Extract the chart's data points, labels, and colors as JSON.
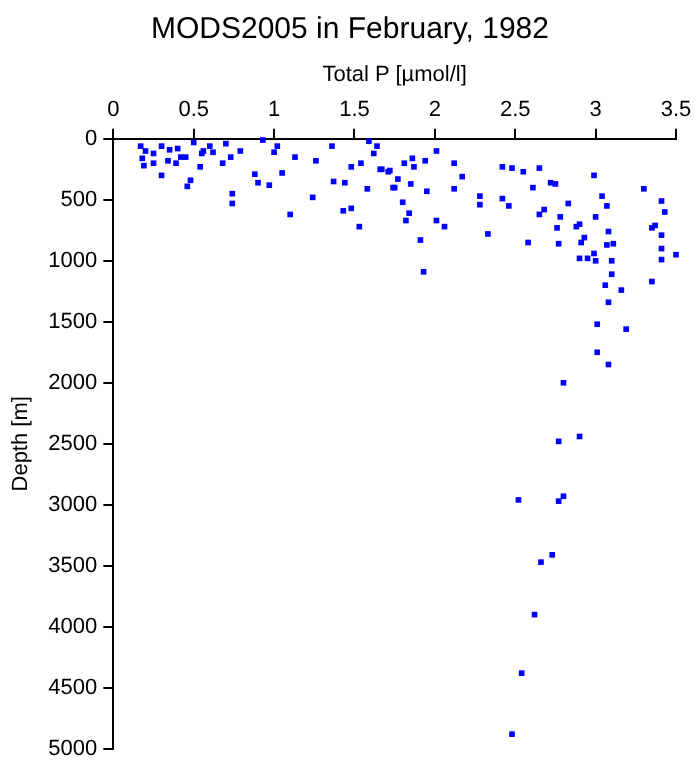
{
  "chart_data": {
    "type": "scatter",
    "title": "MODS2005 in February, 1982",
    "xlabel": "Total P [µmol/l]",
    "ylabel": "Depth [m]",
    "xlim": [
      0,
      3.5
    ],
    "xticks": [
      0,
      0.5,
      1,
      1.5,
      2,
      2.5,
      3,
      3.5
    ],
    "ylim": [
      5000,
      0
    ],
    "yticks": [
      0,
      500,
      1000,
      1500,
      2000,
      2500,
      3000,
      3500,
      4000,
      4500,
      5000
    ],
    "grid": false,
    "legend": false,
    "marker": "square",
    "series": [
      {
        "color": "#0000ff",
        "x": [
          0.17,
          0.18,
          0.19,
          0.25,
          0.3,
          0.34,
          0.39,
          0.42,
          0.48,
          0.46,
          0.54,
          0.56,
          0.62,
          0.68,
          0.73,
          0.74,
          0.74,
          0.79,
          0.88,
          0.9,
          0.97,
          0.93,
          1.0,
          1.02,
          1.05,
          1.1,
          1.13,
          1.24,
          1.26,
          1.36,
          1.37,
          1.44,
          1.48,
          1.43,
          1.53,
          1.48,
          1.54,
          1.58,
          1.62,
          1.66,
          1.71,
          1.75,
          1.64,
          1.59,
          0.2,
          0.3,
          0.4,
          0.5,
          0.6,
          0.7,
          0.45,
          0.55,
          0.35,
          0.25,
          1.67,
          1.72,
          1.77,
          1.81,
          1.86,
          1.87,
          1.85,
          1.74,
          1.8,
          1.84,
          1.82,
          1.91,
          1.93,
          1.94,
          1.95,
          2.01,
          2.01,
          2.06,
          2.12,
          2.17,
          2.12,
          2.28,
          2.28,
          2.33,
          2.42,
          2.48,
          2.42,
          2.46,
          2.55,
          2.61,
          2.58,
          2.65,
          2.68,
          2.65,
          2.72,
          2.75,
          2.83,
          2.78,
          2.76,
          2.77,
          2.88,
          2.9,
          2.93,
          2.91,
          2.9,
          2.95,
          2.99,
          3.0,
          3.04,
          3.07,
          3.08,
          3.07,
          3.11,
          3.0,
          2.99,
          3.1,
          3.1,
          3.06,
          3.08,
          3.16,
          3.19,
          3.01,
          3.01,
          3.08,
          2.8,
          3.3,
          3.41,
          3.43,
          3.35,
          3.37,
          3.41,
          3.41,
          3.41,
          3.5,
          3.35,
          2.9,
          2.77,
          2.8,
          2.77,
          2.52,
          2.73,
          2.66,
          2.62,
          2.54,
          2.48
        ],
        "values": [
          60,
          160,
          220,
          200,
          300,
          180,
          200,
          150,
          340,
          390,
          230,
          100,
          110,
          200,
          150,
          450,
          530,
          100,
          290,
          360,
          380,
          10,
          110,
          60,
          280,
          620,
          150,
          480,
          180,
          60,
          350,
          360,
          570,
          590,
          720,
          230,
          200,
          410,
          120,
          250,
          270,
          400,
          60,
          20,
          100,
          60,
          80,
          30,
          60,
          40,
          150,
          120,
          90,
          120,
          250,
          260,
          330,
          200,
          160,
          230,
          370,
          400,
          520,
          610,
          670,
          830,
          1090,
          180,
          430,
          100,
          670,
          720,
          200,
          310,
          410,
          470,
          540,
          780,
          230,
          240,
          490,
          550,
          270,
          400,
          850,
          240,
          580,
          620,
          360,
          370,
          530,
          640,
          730,
          860,
          720,
          700,
          810,
          850,
          980,
          980,
          300,
          640,
          470,
          550,
          760,
          870,
          860,
          1000,
          940,
          1000,
          1110,
          1200,
          1340,
          1240,
          1560,
          1520,
          1750,
          1850,
          2000,
          410,
          510,
          600,
          730,
          710,
          790,
          900,
          990,
          950,
          1170,
          2440,
          2480,
          2930,
          2970,
          2960,
          3410,
          3470,
          3900,
          4380,
          4880
        ]
      }
    ]
  }
}
